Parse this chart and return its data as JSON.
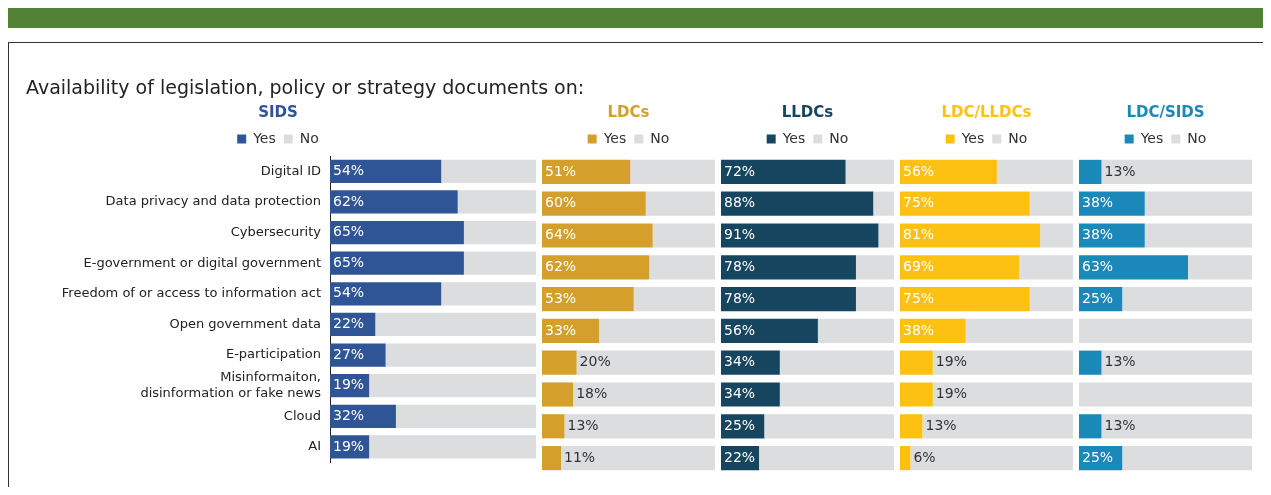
{
  "chart_data": [
    {
      "type": "bar",
      "orientation": "horizontal",
      "stacked": true,
      "title": "SIDS",
      "annotations": [
        "Availability of legislation, policy or strategy documents on:"
      ],
      "categories": [
        "Digital ID",
        "Data privacy and data protection",
        "Cybersecurity",
        "E-government or digital government",
        "Freedom of or access to information act",
        "Open government data",
        "E-participation",
        "Misinformaiton,\ndisinformation or fake news",
        "Cloud",
        "AI"
      ],
      "tick_labels": "y",
      "legend": "top",
      "grid": false,
      "series": [
        {
          "name": "Yes",
          "color": "#2f5597",
          "values": [
            54,
            62,
            65,
            65,
            54,
            22,
            27,
            19,
            32,
            19
          ],
          "value_labels": [
            "54%",
            "62%",
            "65%",
            "65%",
            "54%",
            "22%",
            "27%",
            "19%",
            "32%",
            "19%"
          ]
        },
        {
          "name": "No",
          "color": "#dcdddf",
          "values": [
            46,
            38,
            35,
            35,
            46,
            78,
            73,
            81,
            68,
            81
          ]
        }
      ]
    },
    {
      "type": "bar",
      "orientation": "horizontal",
      "stacked": true,
      "title": "LDCs",
      "categories": [
        null,
        null,
        null,
        null,
        null,
        null,
        null,
        null,
        null,
        null
      ],
      "tick_labels": false,
      "legend": "top",
      "grid": false,
      "series": [
        {
          "name": "Yes",
          "color": "#d4a02b",
          "values": [
            51,
            60,
            64,
            62,
            53,
            33,
            20,
            18,
            13,
            11
          ],
          "value_labels": [
            "51%",
            "60%",
            "64%",
            "62%",
            "53%",
            "33%",
            "20%",
            "18%",
            "13%",
            "11%"
          ]
        },
        {
          "name": "No",
          "color": "#dcdddf",
          "values": [
            49,
            40,
            36,
            38,
            47,
            67,
            80,
            82,
            87,
            89
          ]
        }
      ]
    },
    {
      "type": "bar",
      "orientation": "horizontal",
      "stacked": true,
      "title": "LLDCs",
      "categories": [
        null,
        null,
        null,
        null,
        null,
        null,
        null,
        null,
        null,
        null
      ],
      "tick_labels": false,
      "legend": "top",
      "grid": false,
      "series": [
        {
          "name": "Yes",
          "color": "#16465f",
          "values": [
            72,
            88,
            91,
            78,
            78,
            56,
            34,
            34,
            25,
            22
          ],
          "value_labels": [
            "72%",
            "88%",
            "91%",
            "78%",
            "78%",
            "56%",
            "34%",
            "34%",
            "25%",
            "22%"
          ]
        },
        {
          "name": "No",
          "color": "#dcdddf",
          "values": [
            28,
            12,
            9,
            22,
            22,
            44,
            66,
            66,
            75,
            78
          ]
        }
      ]
    },
    {
      "type": "bar",
      "orientation": "horizontal",
      "stacked": true,
      "title": "LDC/LLDCs",
      "categories": [
        null,
        null,
        null,
        null,
        null,
        null,
        null,
        null,
        null,
        null
      ],
      "tick_labels": false,
      "legend": "top",
      "grid": false,
      "series": [
        {
          "name": "Yes",
          "color": "#fdc113",
          "values": [
            56,
            75,
            81,
            69,
            75,
            38,
            19,
            19,
            13,
            6
          ],
          "value_labels": [
            "56%",
            "75%",
            "81%",
            "69%",
            "75%",
            "38%",
            "19%",
            "19%",
            "13%",
            "6%"
          ]
        },
        {
          "name": "No",
          "color": "#dcdddf",
          "values": [
            44,
            25,
            19,
            31,
            25,
            62,
            81,
            81,
            87,
            94
          ]
        }
      ]
    },
    {
      "type": "bar",
      "orientation": "horizontal",
      "stacked": true,
      "title": "LDC/SIDS",
      "categories": [
        null,
        null,
        null,
        null,
        null,
        null,
        null,
        null,
        null,
        null
      ],
      "tick_labels": false,
      "legend": "top",
      "grid": false,
      "series": [
        {
          "name": "Yes",
          "color": "#1a88b9",
          "values": [
            13,
            38,
            38,
            63,
            25,
            0,
            13,
            0,
            13,
            25
          ],
          "value_labels": [
            "13%",
            "38%",
            "38%",
            "63%",
            "25%",
            null,
            "13%",
            null,
            "13%",
            "25%"
          ]
        },
        {
          "name": "No",
          "color": "#dcdddf",
          "values": [
            87,
            62,
            62,
            37,
            75,
            100,
            87,
            100,
            87,
            75
          ]
        }
      ]
    }
  ]
}
